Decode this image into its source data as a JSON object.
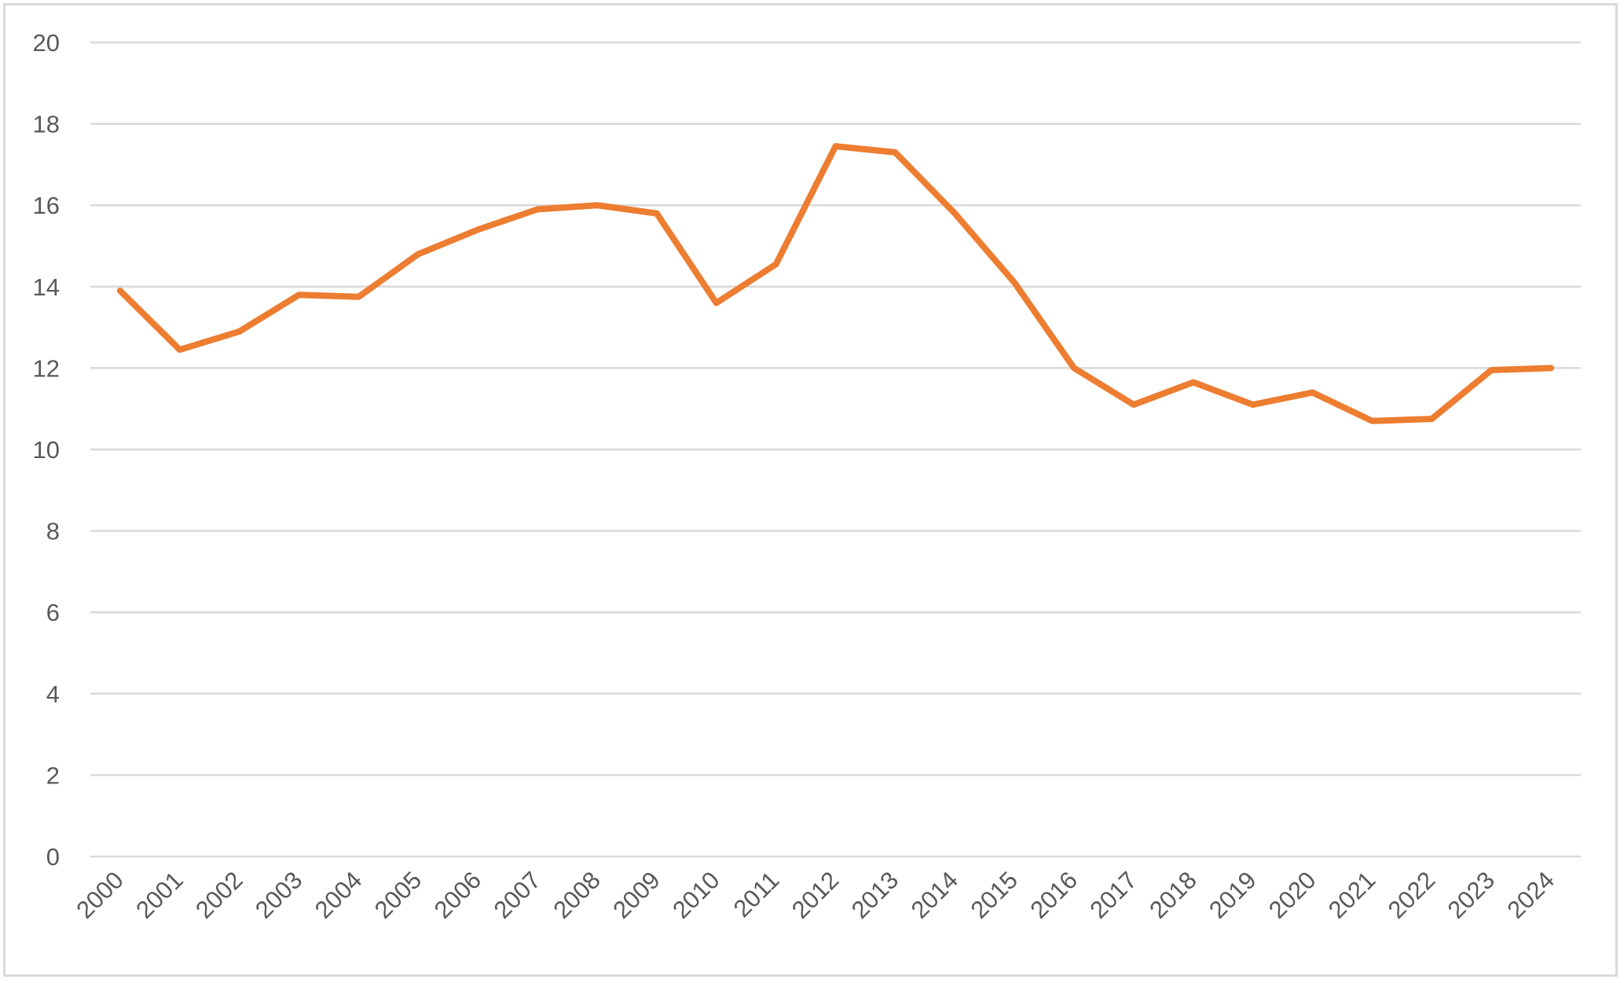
{
  "chart_data": {
    "type": "line",
    "title": "",
    "xlabel": "",
    "ylabel": "",
    "ylim": [
      0,
      20
    ],
    "y_ticks": [
      "0",
      "2",
      "4",
      "6",
      "8",
      "10",
      "12",
      "14",
      "16",
      "18",
      "20"
    ],
    "categories": [
      "2000",
      "2001",
      "2002",
      "2003",
      "2004",
      "2005",
      "2006",
      "2007",
      "2008",
      "2009",
      "2010",
      "2011",
      "2012",
      "2013",
      "2014",
      "2015",
      "2016",
      "2017",
      "2018",
      "2019",
      "2020",
      "2021",
      "2022",
      "2023",
      "2024"
    ],
    "series": [
      {
        "name": "",
        "color": "#ed7d31",
        "values": [
          13.9,
          12.45,
          12.9,
          13.8,
          13.75,
          14.8,
          15.4,
          15.9,
          16.0,
          15.8,
          13.6,
          14.55,
          17.45,
          17.3,
          15.8,
          14.1,
          12.0,
          11.1,
          11.65,
          11.1,
          11.4,
          10.7,
          10.75,
          11.95,
          12.0
        ]
      }
    ],
    "grid": true,
    "grid_color": "#d9d9d9",
    "legend": "none"
  }
}
